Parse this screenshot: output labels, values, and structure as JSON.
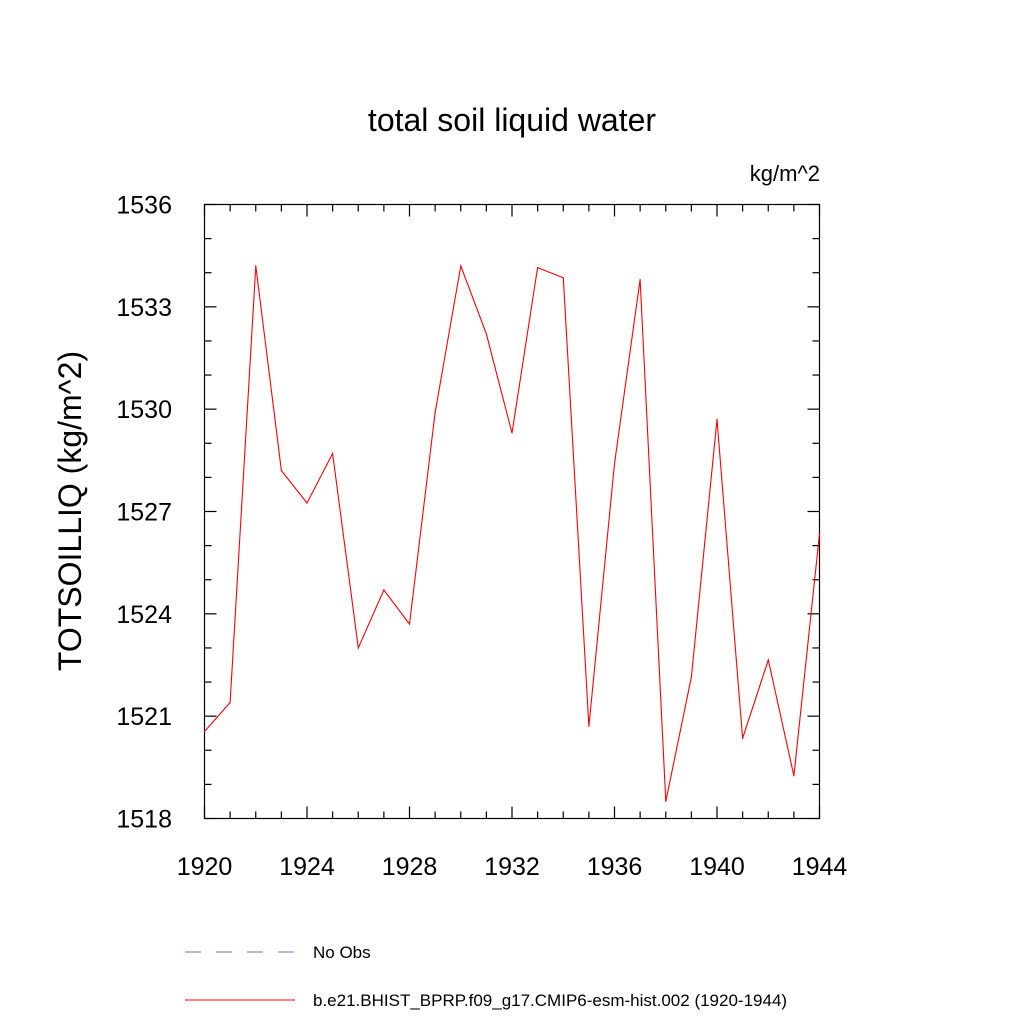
{
  "chart_data": {
    "type": "line",
    "title": "total soil liquid water",
    "units": "kg/m^2",
    "xlabel": "",
    "ylabel": "TOTSOILLIQ  (kg/m^2)",
    "xlim": [
      1920,
      1944
    ],
    "ylim": [
      1518,
      1536
    ],
    "x_ticks": [
      1920,
      1924,
      1928,
      1932,
      1936,
      1940,
      1944
    ],
    "x_tick_labels": [
      "1920",
      "1924",
      "1928",
      "1932",
      "1936",
      "1940",
      "1944"
    ],
    "y_ticks": [
      1518,
      1521,
      1524,
      1527,
      1530,
      1533,
      1536
    ],
    "y_tick_labels": [
      "1518",
      "1521",
      "1524",
      "1527",
      "1530",
      "1533",
      "1536"
    ],
    "grid": false,
    "series": [
      {
        "name": "b.e21.BHIST_BPRP.f09_g17.CMIP6-esm-hist.002 (1920-1944)",
        "color": "#ff0000",
        "dash": "solid",
        "x": [
          1920,
          1921,
          1922,
          1923,
          1924,
          1925,
          1926,
          1927,
          1928,
          1929,
          1930,
          1931,
          1932,
          1933,
          1934,
          1935,
          1936,
          1937,
          1938,
          1939,
          1940,
          1941,
          1942,
          1943,
          1944
        ],
        "values": [
          1520.55,
          1521.4,
          1534.2,
          1528.2,
          1527.25,
          1528.7,
          1523.0,
          1524.7,
          1523.7,
          1529.9,
          1534.2,
          1532.2,
          1529.3,
          1534.15,
          1533.85,
          1520.7,
          1528.4,
          1533.8,
          1518.5,
          1522.15,
          1529.7,
          1520.35,
          1522.65,
          1519.25,
          1526.35
        ]
      }
    ],
    "legend": [
      {
        "label": "No Obs",
        "color": "#7b68c8",
        "dash": "dashed"
      },
      {
        "label": "b.e21.BHIST_BPRP.f09_g17.CMIP6-esm-hist.002 (1920-1944)",
        "color": "#ff0000",
        "dash": "solid"
      }
    ],
    "legend_position": "bottom"
  }
}
